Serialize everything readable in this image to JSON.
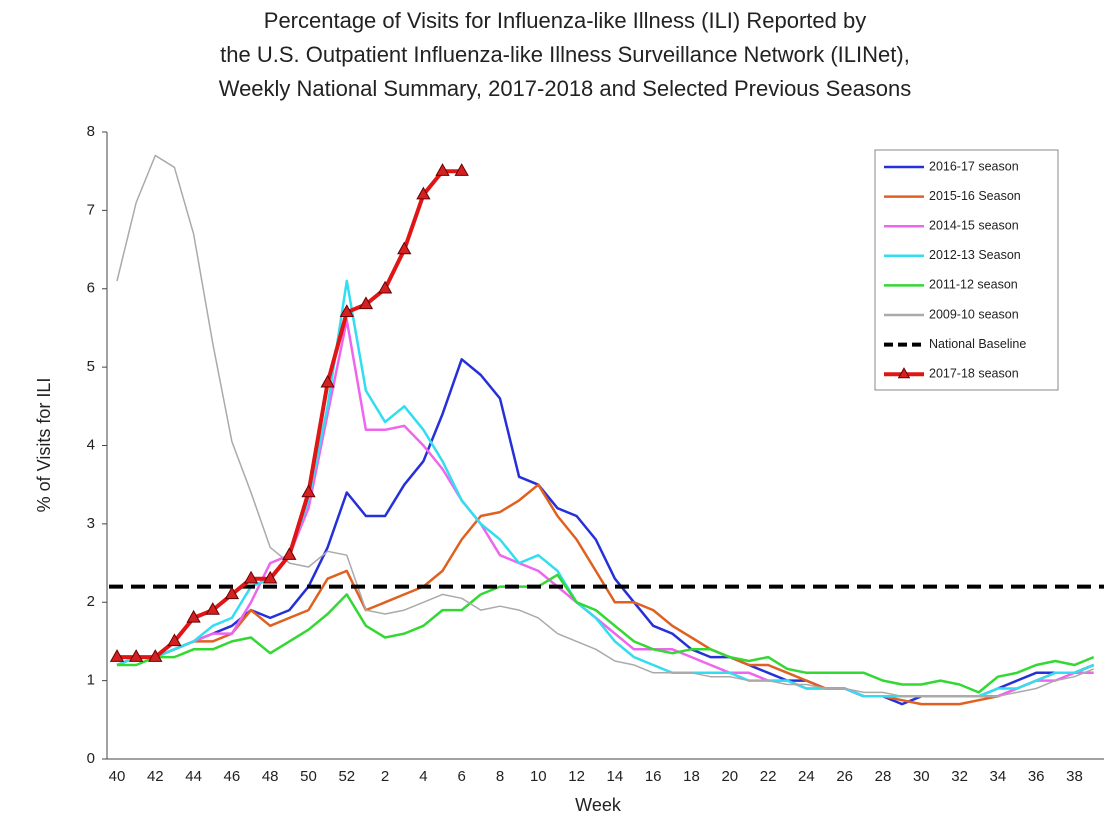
{
  "chart_data": {
    "type": "line",
    "title": [
      "Percentage of Visits for Influenza-like Illness (ILI) Reported by",
      "the U.S. Outpatient Influenza-like Illness Surveillance Network (ILINet),",
      "Weekly National Summary, 2017-2018 and Selected Previous Seasons"
    ],
    "x_label": "Week",
    "y_label": "% of Visits for ILI",
    "categories": [
      "40",
      null,
      "42",
      null,
      "44",
      null,
      "46",
      null,
      "48",
      null,
      "50",
      null,
      "52",
      null,
      "2",
      null,
      "4",
      null,
      "6",
      null,
      "8",
      null,
      "10",
      null,
      "12",
      null,
      "14",
      null,
      "16",
      null,
      "18",
      null,
      "20",
      null,
      "22",
      null,
      "24",
      null,
      "26",
      null,
      "28",
      null,
      "30",
      null,
      "32",
      null,
      "34",
      null,
      "36",
      null,
      "38",
      null
    ],
    "ylim": [
      0,
      8
    ],
    "yticks": [
      0,
      1,
      2,
      3,
      4,
      5,
      6,
      7,
      8
    ],
    "legend": "top-right",
    "series": [
      {
        "name": "2016-17 season",
        "color": "#2630d8",
        "values": [
          1.3,
          1.3,
          1.3,
          1.4,
          1.5,
          1.6,
          1.7,
          1.9,
          1.8,
          1.9,
          2.2,
          2.7,
          3.4,
          3.1,
          3.1,
          3.5,
          3.8,
          4.4,
          5.1,
          4.9,
          4.6,
          3.6,
          3.5,
          3.2,
          3.1,
          2.8,
          2.3,
          2.0,
          1.7,
          1.6,
          1.4,
          1.3,
          1.3,
          1.2,
          1.1,
          1.0,
          1.0,
          0.9,
          0.9,
          0.8,
          0.8,
          0.7,
          0.8,
          0.8,
          0.8,
          0.8,
          0.9,
          1.0,
          1.1,
          1.1,
          1.1,
          1.2
        ]
      },
      {
        "name": "2015-16 Season",
        "color": "#e06020",
        "values": [
          1.2,
          1.3,
          1.3,
          1.4,
          1.5,
          1.5,
          1.6,
          1.9,
          1.7,
          1.8,
          1.9,
          2.3,
          2.4,
          1.9,
          2.0,
          2.1,
          2.2,
          2.4,
          2.8,
          3.1,
          3.15,
          3.3,
          3.5,
          3.1,
          2.8,
          2.4,
          2.0,
          2.0,
          1.9,
          1.7,
          1.55,
          1.4,
          1.3,
          1.2,
          1.2,
          1.1,
          1.0,
          0.9,
          0.9,
          0.8,
          0.8,
          0.75,
          0.7,
          0.7,
          0.7,
          0.75,
          0.8,
          0.9,
          1.0,
          1.1,
          1.1,
          1.2
        ]
      },
      {
        "name": "2014-15 season",
        "color": "#ee66ee",
        "values": [
          1.2,
          1.3,
          1.3,
          1.4,
          1.5,
          1.6,
          1.6,
          2.0,
          2.5,
          2.6,
          3.2,
          4.4,
          5.6,
          4.2,
          4.2,
          4.25,
          4.0,
          3.7,
          3.3,
          3.0,
          2.6,
          2.5,
          2.4,
          2.2,
          2.0,
          1.8,
          1.6,
          1.4,
          1.4,
          1.4,
          1.3,
          1.2,
          1.1,
          1.1,
          1.0,
          1.0,
          0.9,
          0.9,
          0.9,
          0.8,
          0.8,
          0.8,
          0.8,
          0.8,
          0.8,
          0.8,
          0.8,
          0.9,
          1.0,
          1.0,
          1.1,
          1.1
        ]
      },
      {
        "name": "2012-13 Season",
        "color": "#33ddf0",
        "values": [
          1.2,
          1.3,
          1.3,
          1.4,
          1.5,
          1.7,
          1.8,
          2.2,
          2.3,
          2.6,
          3.3,
          4.5,
          6.1,
          4.7,
          4.3,
          4.5,
          4.2,
          3.8,
          3.3,
          3.0,
          2.8,
          2.5,
          2.6,
          2.4,
          2.0,
          1.8,
          1.5,
          1.3,
          1.2,
          1.1,
          1.1,
          1.1,
          1.1,
          1.0,
          1.0,
          1.0,
          0.9,
          0.9,
          0.9,
          0.8,
          0.8,
          0.8,
          0.8,
          0.8,
          0.8,
          0.8,
          0.9,
          0.9,
          1.0,
          1.1,
          1.1,
          1.2
        ]
      },
      {
        "name": "2011-12 season",
        "color": "#33d833",
        "values": [
          1.2,
          1.2,
          1.3,
          1.3,
          1.4,
          1.4,
          1.5,
          1.55,
          1.35,
          1.5,
          1.65,
          1.85,
          2.1,
          1.7,
          1.55,
          1.6,
          1.7,
          1.9,
          1.9,
          2.1,
          2.2,
          2.2,
          2.2,
          2.35,
          2.0,
          1.9,
          1.7,
          1.5,
          1.4,
          1.35,
          1.4,
          1.4,
          1.3,
          1.25,
          1.3,
          1.15,
          1.1,
          1.1,
          1.1,
          1.1,
          1.0,
          0.95,
          0.95,
          1.0,
          0.95,
          0.85,
          1.05,
          1.1,
          1.2,
          1.25,
          1.2,
          1.3
        ]
      },
      {
        "name": "2009-10 season",
        "color": "#aaaaaa",
        "values": [
          6.1,
          7.1,
          7.7,
          7.55,
          6.7,
          5.3,
          4.05,
          3.4,
          2.7,
          2.5,
          2.45,
          2.65,
          2.6,
          1.9,
          1.85,
          1.9,
          2.0,
          2.1,
          2.05,
          1.9,
          1.95,
          1.9,
          1.8,
          1.6,
          1.5,
          1.4,
          1.25,
          1.2,
          1.1,
          1.1,
          1.1,
          1.05,
          1.05,
          1.0,
          1.0,
          0.95,
          0.95,
          0.9,
          0.9,
          0.85,
          0.85,
          0.8,
          0.8,
          0.8,
          0.8,
          0.8,
          0.8,
          0.85,
          0.9,
          1.0,
          1.05,
          1.15
        ]
      },
      {
        "name": "National Baseline",
        "color": "#000000",
        "dashed": true,
        "line_value": 2.2
      },
      {
        "name": "2017-18 season",
        "color": "#e01515",
        "marker": "triangle",
        "values": [
          1.3,
          1.3,
          1.3,
          1.5,
          1.8,
          1.9,
          2.1,
          2.3,
          2.3,
          2.6,
          3.4,
          4.8,
          5.7,
          5.8,
          6.0,
          6.5,
          7.2,
          7.5,
          7.5,
          null,
          null,
          null,
          null,
          null,
          null,
          null,
          null,
          null,
          null,
          null,
          null,
          null,
          null,
          null,
          null,
          null,
          null,
          null,
          null,
          null,
          null,
          null,
          null,
          null,
          null,
          null,
          null,
          null,
          null,
          null,
          null,
          null
        ]
      }
    ]
  }
}
